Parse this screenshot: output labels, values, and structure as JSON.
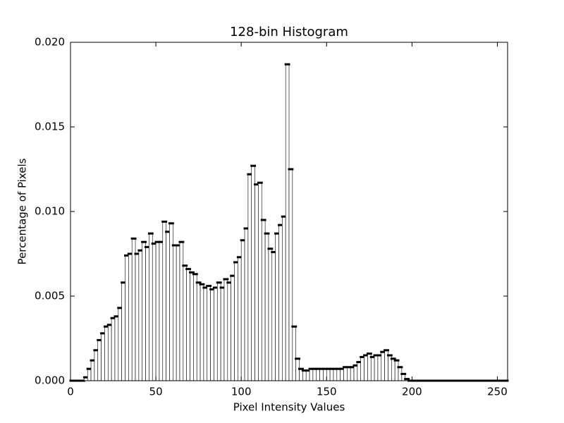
{
  "chart_data": {
    "type": "histogram",
    "title": "128-bin Histogram",
    "x_label": "Pixel Intensity Values",
    "y_label": "Percentage of Pixels",
    "bins": [
      0,
      2,
      4,
      6,
      8,
      10,
      12,
      14,
      16,
      18,
      20,
      22,
      24,
      26,
      28,
      30,
      32,
      34,
      36,
      38,
      40,
      42,
      44,
      46,
      48,
      50,
      52,
      54,
      56,
      58,
      60,
      62,
      64,
      66,
      68,
      70,
      72,
      74,
      76,
      78,
      80,
      82,
      84,
      86,
      88,
      90,
      92,
      94,
      96,
      98,
      100,
      102,
      104,
      106,
      108,
      110,
      112,
      114,
      116,
      118,
      120,
      122,
      124,
      126,
      128,
      130,
      132,
      134,
      136,
      138,
      140,
      142,
      144,
      146,
      148,
      150,
      152,
      154,
      156,
      158,
      160,
      162,
      164,
      166,
      168,
      170,
      172,
      174,
      176,
      178,
      180,
      182,
      184,
      186,
      188,
      190,
      192,
      194,
      196,
      198,
      200,
      202,
      204,
      206,
      208,
      210,
      212,
      214,
      216,
      218,
      220,
      222,
      224,
      226,
      228,
      230,
      232,
      234,
      236,
      238,
      240,
      242,
      244,
      246,
      248,
      250,
      252,
      254,
      256
    ],
    "values": [
      0,
      0,
      0,
      0,
      0.0002,
      0.0007,
      0.0012,
      0.0018,
      0.0024,
      0.0028,
      0.0032,
      0.0033,
      0.0037,
      0.0038,
      0.0043,
      0.0058,
      0.0074,
      0.0075,
      0.0084,
      0.0075,
      0.0077,
      0.0082,
      0.0079,
      0.0087,
      0.0081,
      0.0082,
      0.0082,
      0.0094,
      0.0088,
      0.0093,
      0.008,
      0.008,
      0.0082,
      0.0068,
      0.0066,
      0.0064,
      0.0063,
      0.0058,
      0.0057,
      0.0055,
      0.0056,
      0.0054,
      0.0055,
      0.0058,
      0.0055,
      0.006,
      0.0058,
      0.0062,
      0.007,
      0.0073,
      0.0083,
      0.009,
      0.0122,
      0.0127,
      0.0116,
      0.0117,
      0.0095,
      0.0087,
      0.0078,
      0.0076,
      0.0087,
      0.0092,
      0.0097,
      0.0187,
      0.0125,
      0.0032,
      0.0013,
      0.0007,
      0.0006,
      0.0006,
      0.0007,
      0.0007,
      0.0007,
      0.0007,
      0.0007,
      0.0007,
      0.0007,
      0.0007,
      0.0007,
      0.0007,
      0.0008,
      0.0008,
      0.0008,
      0.0009,
      0.0011,
      0.0014,
      0.0015,
      0.0016,
      0.0014,
      0.0015,
      0.0015,
      0.0017,
      0.0018,
      0.0015,
      0.0013,
      0.0012,
      0.0008,
      0.0004,
      0.0001,
      0,
      0,
      0,
      0,
      0,
      0,
      0,
      0,
      0,
      0,
      0,
      0,
      0,
      0,
      0,
      0,
      0,
      0,
      0,
      0,
      0,
      0,
      0,
      0,
      0,
      0,
      0,
      0,
      0
    ],
    "color": "#000000",
    "xlim": [
      0,
      256
    ],
    "xticks": [
      0,
      50,
      100,
      150,
      200,
      250
    ],
    "ylim": [
      0,
      0.02
    ],
    "yticks": [
      {
        "value": 0,
        "label": "0.000"
      },
      {
        "value": 0.005,
        "label": "0.005"
      },
      {
        "value": 0.01,
        "label": "0.010"
      },
      {
        "value": 0.015,
        "label": "0.015"
      },
      {
        "value": 0.02,
        "label": "0.020"
      }
    ],
    "grid": false
  }
}
